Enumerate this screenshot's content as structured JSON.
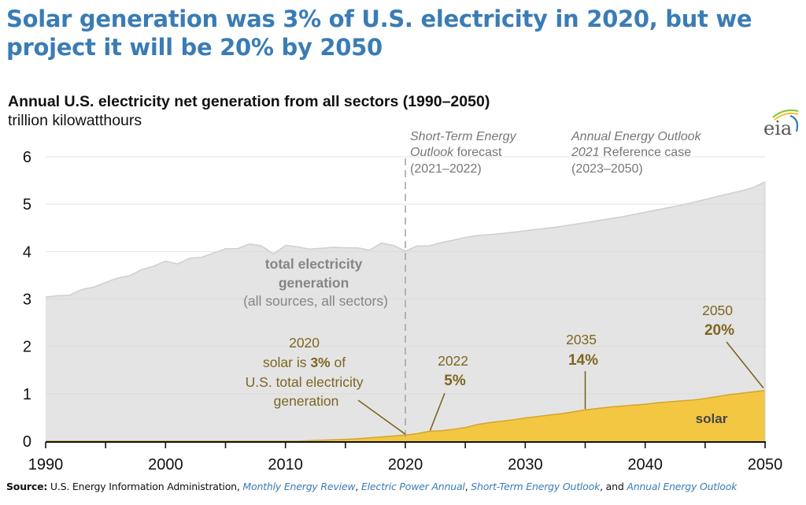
{
  "headline": "Solar generation was 3% of U.S. electricity in 2020, but we project it will be 20% by 2050",
  "colors": {
    "headline": "#3a7cb5",
    "total_fill": "#e4e4e4",
    "total_line": "#cfcfcf",
    "solar_fill": "#f4c743",
    "solar_line": "#d4a52a",
    "annotation": "#7d6521",
    "gridline": "#d9d9d9",
    "forecast_divider": "#a6a6a6",
    "source_link": "#3a7cb5"
  },
  "logo": {
    "icon": "eia-logo-icon",
    "text": "eia"
  },
  "source": {
    "label": "Source:",
    "text": "U.S. Energy Information Administration,",
    "links": [
      "Monthly Energy Review",
      "Electric Power Annual",
      "Short-Term Energy Outlook",
      "Annual Energy Outlook"
    ],
    "sep1": ",",
    "sep2": ",",
    "sep3": ", and"
  },
  "chart_data": {
    "type": "area",
    "title": "Annual U.S. electricity net generation from all sectors (1990–2050)",
    "ylabel": "trillion kilowatthours",
    "xlabel": "",
    "xlim": [
      1990,
      2050
    ],
    "ylim": [
      0,
      6
    ],
    "xticks": [
      1990,
      2000,
      2010,
      2020,
      2030,
      2040,
      2050
    ],
    "xticks_minor": [
      1995,
      2005,
      2015,
      2025,
      2035,
      2045
    ],
    "yticks": [
      0,
      1,
      2,
      3,
      4,
      5,
      6
    ],
    "grid": true,
    "legend": "none (inline labels)",
    "x": [
      1990,
      1991,
      1992,
      1993,
      1994,
      1995,
      1996,
      1997,
      1998,
      1999,
      2000,
      2001,
      2002,
      2003,
      2004,
      2005,
      2006,
      2007,
      2008,
      2009,
      2010,
      2011,
      2012,
      2013,
      2014,
      2015,
      2016,
      2017,
      2018,
      2019,
      2020,
      2021,
      2022,
      2023,
      2024,
      2025,
      2026,
      2027,
      2028,
      2029,
      2030,
      2031,
      2032,
      2033,
      2034,
      2035,
      2036,
      2037,
      2038,
      2039,
      2040,
      2041,
      2042,
      2043,
      2044,
      2045,
      2046,
      2047,
      2048,
      2049,
      2050
    ],
    "series": [
      {
        "name": "total electricity generation",
        "values": [
          3.04,
          3.07,
          3.08,
          3.2,
          3.25,
          3.35,
          3.44,
          3.49,
          3.62,
          3.69,
          3.8,
          3.74,
          3.86,
          3.88,
          3.97,
          4.06,
          4.06,
          4.16,
          4.12,
          3.95,
          4.13,
          4.1,
          4.05,
          4.07,
          4.09,
          4.08,
          4.08,
          4.03,
          4.18,
          4.13,
          4.01,
          4.12,
          4.12,
          4.19,
          4.24,
          4.3,
          4.34,
          4.36,
          4.38,
          4.41,
          4.44,
          4.47,
          4.5,
          4.53,
          4.57,
          4.61,
          4.65,
          4.69,
          4.73,
          4.78,
          4.83,
          4.88,
          4.93,
          4.98,
          5.04,
          5.1,
          5.16,
          5.22,
          5.28,
          5.35,
          5.47
        ]
      },
      {
        "name": "solar",
        "values": [
          0.0,
          0.0,
          0.0,
          0.0,
          0.0,
          0.0,
          0.0,
          0.0,
          0.0,
          0.0,
          0.0,
          0.0,
          0.0,
          0.0,
          0.0,
          0.0,
          0.0,
          0.0,
          0.0,
          0.0,
          0.0,
          0.0,
          0.01,
          0.02,
          0.03,
          0.04,
          0.05,
          0.07,
          0.09,
          0.11,
          0.13,
          0.16,
          0.21,
          0.22,
          0.25,
          0.29,
          0.35,
          0.39,
          0.42,
          0.45,
          0.49,
          0.52,
          0.55,
          0.58,
          0.62,
          0.66,
          0.69,
          0.72,
          0.74,
          0.76,
          0.78,
          0.81,
          0.83,
          0.85,
          0.87,
          0.9,
          0.94,
          0.98,
          1.01,
          1.04,
          1.07
        ]
      }
    ],
    "forecast_divider_year": 2020,
    "period_labels": [
      {
        "italic": "Short-Term Energy",
        "line2_italic": "Outlook",
        "line2_rest": " forecast",
        "line3": "(2021–2022)"
      },
      {
        "italic": "Annual Energy Outlook",
        "line2_italic": "2021",
        "line2_rest": " Reference case",
        "line3": "(2023–2050)"
      }
    ],
    "annotations": {
      "total_label": {
        "line1": "total electricity",
        "line2": "generation",
        "line3": "(all sources, all sectors)"
      },
      "solar_label": "solar",
      "a2020": {
        "year": "2020",
        "pre": "solar is ",
        "pct": "3%",
        "post": " of",
        "line3": "U.S. total electricity",
        "line4": "generation",
        "point_year": 2020
      },
      "a2022": {
        "year": "2022",
        "pct": "5%",
        "point_year": 2022
      },
      "a2035": {
        "year": "2035",
        "pct": "14%",
        "point_year": 2035
      },
      "a2050": {
        "year": "2050",
        "pct": "20%",
        "point_year": 2050
      }
    }
  }
}
